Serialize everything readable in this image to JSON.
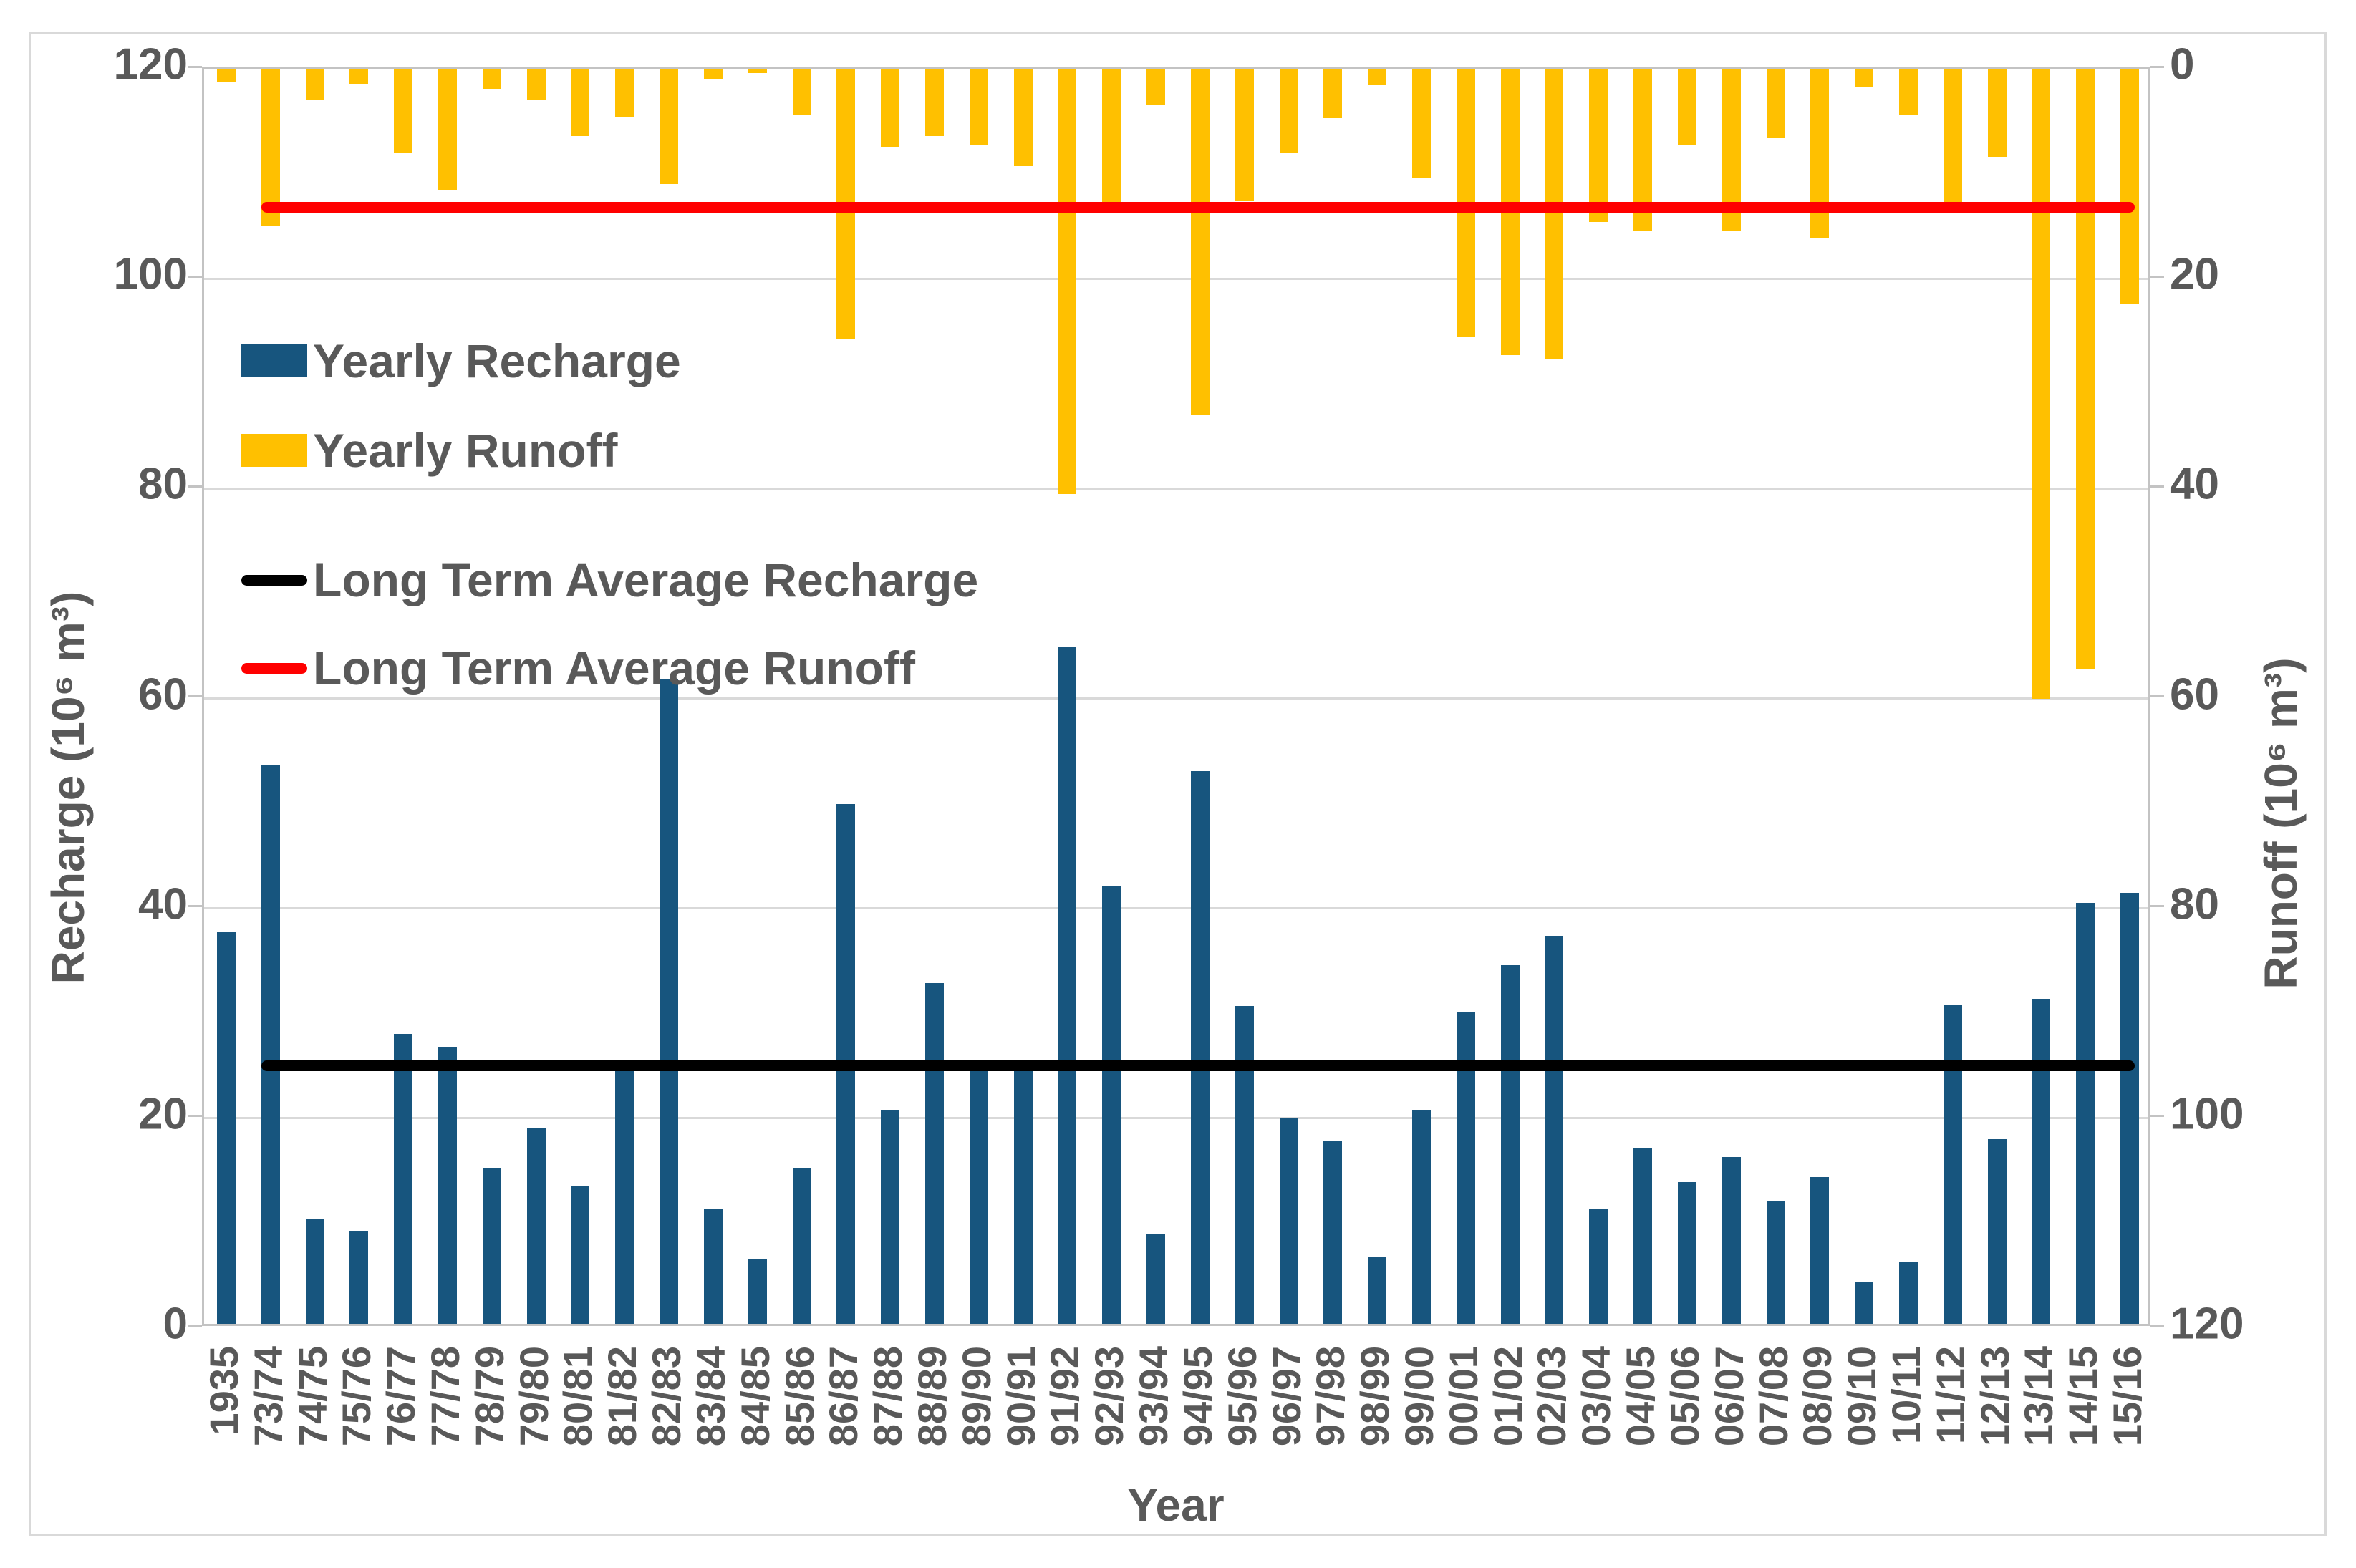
{
  "figure": {
    "background": "#ffffff",
    "border_color": "#d9d9d9",
    "plot_border_color": "#c3c3c3",
    "gridline_color": "#d9d9d9",
    "text_color": "#595959"
  },
  "chart_data": {
    "type": "bar",
    "title": "",
    "xlabel": "Year",
    "ylabel_left": "Recharge (10⁶ m³)",
    "ylabel_right": "Runoff  (10⁶ m³)",
    "grid": true,
    "legend_position": "upper-left-inside",
    "categories": [
      "1935",
      "73/74",
      "74/75",
      "75/76",
      "76/77",
      "77/78",
      "78/79",
      "79/80",
      "80/81",
      "81/82",
      "82/83",
      "83/84",
      "84/85",
      "85/86",
      "86/87",
      "87/88",
      "88/89",
      "89/90",
      "90/91",
      "91/92",
      "92/93",
      "93/94",
      "94/95",
      "95/96",
      "96/97",
      "97/98",
      "98/99",
      "99/00",
      "00/01",
      "01/02",
      "02/03",
      "03/04",
      "04/05",
      "05/06",
      "06/07",
      "07/08",
      "08/09",
      "09/10",
      "10/11",
      "11/12",
      "12/13",
      "13/14",
      "14/15",
      "15/16"
    ],
    "left_axis": {
      "label": "Recharge (10⁶ m³)",
      "ticks": [
        0,
        20,
        40,
        60,
        80,
        100,
        120
      ],
      "range": [
        0,
        120
      ],
      "inverted": false
    },
    "right_axis": {
      "label": "Runoff  (10⁶ m³)",
      "ticks": [
        0,
        20,
        40,
        60,
        80,
        100,
        120
      ],
      "range": [
        0,
        120
      ],
      "inverted": true
    },
    "series": [
      {
        "name": "Yearly Recharge",
        "kind": "bar",
        "axis": "left",
        "color": "#17557e",
        "values": [
          37.3,
          53.2,
          10.0,
          8.8,
          27.6,
          26.4,
          14.8,
          18.6,
          13.1,
          24.4,
          61.4,
          10.9,
          6.2,
          14.8,
          49.5,
          20.3,
          32.5,
          24.3,
          24.1,
          64.5,
          41.7,
          8.5,
          52.7,
          30.3,
          19.6,
          17.4,
          6.4,
          20.4,
          29.7,
          34.2,
          37.0,
          10.9,
          16.7,
          13.5,
          15.9,
          11.7,
          14.0,
          4.0,
          5.9,
          30.4,
          17.6,
          31.0,
          40.1,
          41.1
        ]
      },
      {
        "name": "Yearly Runoff",
        "kind": "bar",
        "axis": "right",
        "color": "#ffc000",
        "values": [
          1.3,
          15.0,
          3.0,
          1.4,
          8.0,
          11.6,
          1.9,
          3.0,
          6.4,
          4.6,
          11.0,
          1.0,
          0.4,
          4.4,
          25.8,
          7.5,
          6.4,
          7.3,
          9.3,
          40.5,
          12.7,
          3.5,
          33.0,
          12.6,
          8.0,
          4.7,
          1.6,
          10.4,
          25.6,
          27.3,
          27.6,
          14.6,
          15.5,
          7.2,
          15.5,
          6.6,
          16.2,
          1.8,
          4.4,
          12.9,
          8.4,
          60.0,
          57.2,
          22.4
        ]
      },
      {
        "name": "Long Term Average Recharge",
        "kind": "hline",
        "axis": "left",
        "color": "#000000",
        "value": 24.8,
        "span_categories": [
          "73/74",
          "15/16"
        ]
      },
      {
        "name": "Long Term Average Runoff",
        "kind": "hline",
        "axis": "right",
        "color": "#ff0000",
        "value": 13.4,
        "span_categories": [
          "73/74",
          "15/16"
        ]
      }
    ]
  },
  "legend": {
    "items": [
      {
        "label": "Yearly Recharge",
        "swatch": "bar",
        "color": "#17557e"
      },
      {
        "label": "Yearly Runoff",
        "swatch": "bar",
        "color": "#ffc000"
      },
      {
        "label": "Long Term Average Recharge",
        "swatch": "line",
        "color": "#000000"
      },
      {
        "label": "Long Term Average Runoff",
        "swatch": "line",
        "color": "#ff0000"
      }
    ]
  },
  "axes_text": {
    "x_title": "Year",
    "left_title": "Recharge (10⁶ m³)",
    "right_title": "Runoff  (10⁶ m³)"
  }
}
